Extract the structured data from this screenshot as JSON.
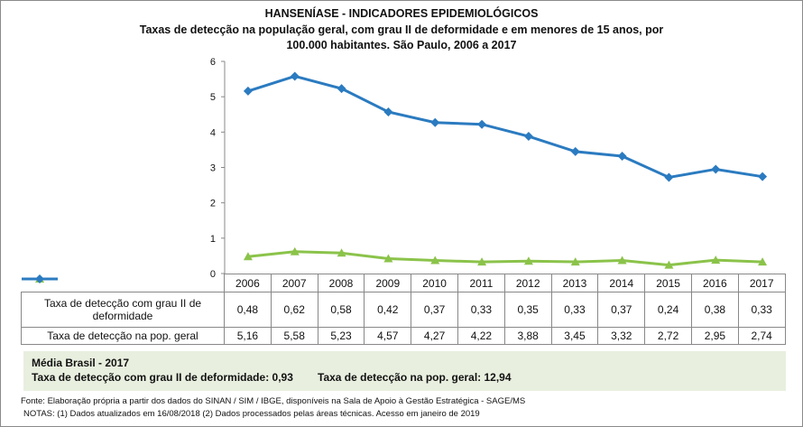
{
  "chart_data": {
    "type": "line",
    "title": "HANSENÍASE - INDICADORES EPIDEMIOLÓGICOS",
    "subtitle": "Taxas de detecção na população geral, com grau II de deformidade e em menores de 15 anos, por 100.000 habitantes. São Paulo, 2006 a 2017",
    "categories": [
      "2006",
      "2007",
      "2008",
      "2009",
      "2010",
      "2011",
      "2012",
      "2013",
      "2014",
      "2015",
      "2016",
      "2017"
    ],
    "ylim": [
      0,
      6
    ],
    "yticks": [
      "0",
      "1",
      "2",
      "3",
      "4",
      "5",
      "6"
    ],
    "grid": false,
    "series": [
      {
        "name": "Taxa de detecção com grau II de deformidade",
        "color": "#8bc34a",
        "marker": "triangle",
        "values": [
          0.48,
          0.62,
          0.58,
          0.42,
          0.37,
          0.33,
          0.35,
          0.33,
          0.37,
          0.24,
          0.38,
          0.33
        ],
        "labels": [
          "0,48",
          "0,62",
          "0,58",
          "0,42",
          "0,37",
          "0,33",
          "0,35",
          "0,33",
          "0,37",
          "0,24",
          "0,38",
          "0,33"
        ]
      },
      {
        "name": "Taxa de detecção na pop. geral",
        "color": "#2b7bc0",
        "marker": "diamond",
        "values": [
          5.16,
          5.58,
          5.23,
          4.57,
          4.27,
          4.22,
          3.88,
          3.45,
          3.32,
          2.72,
          2.95,
          2.74
        ],
        "labels": [
          "5,16",
          "5,58",
          "5,23",
          "4,57",
          "4,27",
          "4,22",
          "3,88",
          "3,45",
          "3,32",
          "2,72",
          "2,95",
          "2,74"
        ]
      }
    ]
  },
  "brasil": {
    "heading": "Média Brasil - 2017",
    "grau2": "Taxa de detecção com grau II de deformidade: 0,93",
    "geral": "Taxa de detecção na pop. geral: 12,94"
  },
  "footer": {
    "fonte": "Fonte:  Elaboração própria a partir dos dados do  SINAN / SIM / IBGE, disponíveis na Sala de Apoio à Gestão Estratégica -  SAGE/MS",
    "notas": "NOTAS: (1) Dados atualizados em 16/08/2018 (2) Dados processados pelas áreas técnicas. Acesso em janeiro de 2019"
  }
}
